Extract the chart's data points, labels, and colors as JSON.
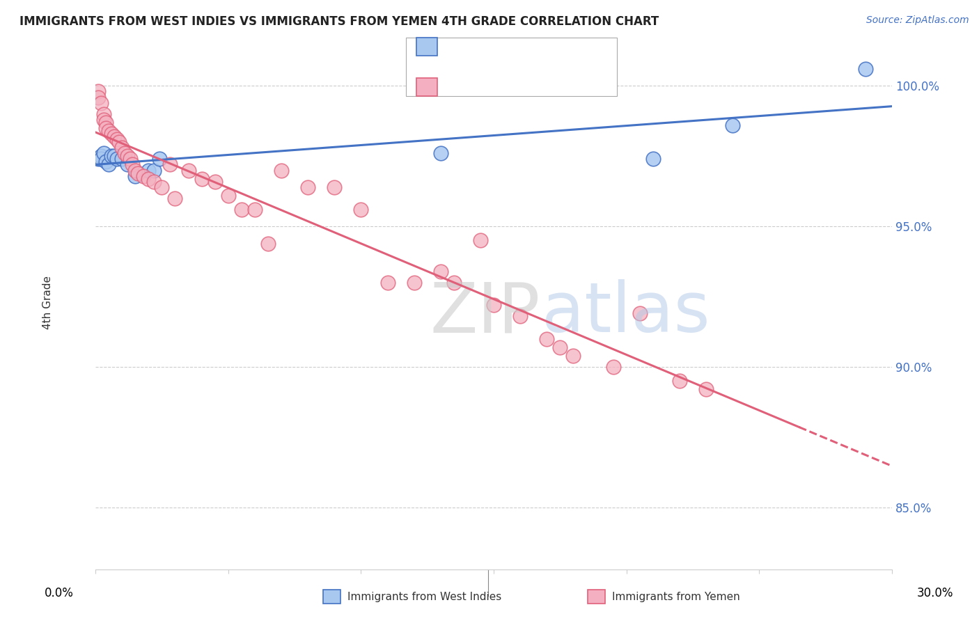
{
  "title": "IMMIGRANTS FROM WEST INDIES VS IMMIGRANTS FROM YEMEN 4TH GRADE CORRELATION CHART",
  "source": "Source: ZipAtlas.com",
  "ylabel": "4th Grade",
  "xlim": [
    0.0,
    0.3
  ],
  "ylim": [
    0.828,
    1.018
  ],
  "blue_color": "#A8C8F0",
  "pink_color": "#F4B0C0",
  "line_blue_color": "#4472C4",
  "line_pink_color": "#E0607A",
  "west_indies_x": [
    0.001,
    0.002,
    0.002,
    0.003,
    0.004,
    0.005,
    0.006,
    0.007,
    0.008,
    0.01,
    0.012,
    0.015,
    0.02,
    0.022,
    0.024,
    0.13,
    0.21,
    0.24,
    0.29
  ],
  "west_indies_y": [
    0.974,
    0.975,
    0.974,
    0.976,
    0.973,
    0.972,
    0.975,
    0.975,
    0.974,
    0.974,
    0.972,
    0.968,
    0.97,
    0.97,
    0.974,
    0.976,
    0.974,
    0.986,
    1.006
  ],
  "yemen_x": [
    0.001,
    0.001,
    0.002,
    0.003,
    0.003,
    0.004,
    0.004,
    0.005,
    0.006,
    0.007,
    0.008,
    0.009,
    0.01,
    0.011,
    0.012,
    0.013,
    0.014,
    0.015,
    0.016,
    0.018,
    0.02,
    0.022,
    0.025,
    0.028,
    0.03,
    0.035,
    0.04,
    0.045,
    0.05,
    0.055,
    0.06,
    0.065,
    0.07,
    0.08,
    0.09,
    0.1,
    0.11,
    0.12,
    0.13,
    0.135,
    0.145,
    0.15,
    0.16,
    0.17,
    0.175,
    0.18,
    0.195,
    0.205,
    0.22,
    0.23
  ],
  "yemen_y": [
    0.998,
    0.996,
    0.994,
    0.99,
    0.988,
    0.987,
    0.985,
    0.984,
    0.983,
    0.982,
    0.981,
    0.98,
    0.978,
    0.976,
    0.975,
    0.974,
    0.972,
    0.97,
    0.969,
    0.968,
    0.967,
    0.966,
    0.964,
    0.972,
    0.96,
    0.97,
    0.967,
    0.966,
    0.961,
    0.956,
    0.956,
    0.944,
    0.97,
    0.964,
    0.964,
    0.956,
    0.93,
    0.93,
    0.934,
    0.93,
    0.945,
    0.922,
    0.918,
    0.91,
    0.907,
    0.904,
    0.9,
    0.919,
    0.895,
    0.892
  ],
  "yticks": [
    0.85,
    0.9,
    0.95,
    1.0
  ],
  "ytick_labels": [
    "85.0%",
    "90.0%",
    "95.0%",
    "100.0%"
  ],
  "xtick_positions": [
    0.0,
    0.05,
    0.1,
    0.15,
    0.2,
    0.25,
    0.3
  ],
  "watermark_text": "ZIPatlas",
  "watermark_color": "#C8D8F0"
}
